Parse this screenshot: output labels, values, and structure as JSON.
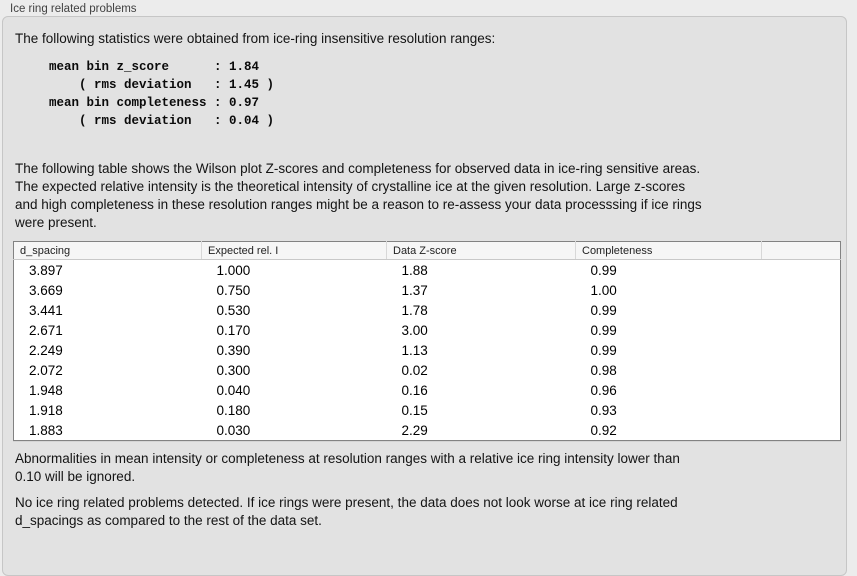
{
  "panel": {
    "title": "Ice ring related problems"
  },
  "intro_text": "The following statistics were obtained from ice-ring insensitive resolution ranges:",
  "stats_block": "mean bin z_score      : 1.84\n    ( rms deviation   : 1.45 )\nmean bin completeness : 0.97\n    ( rms deviation   : 0.04 )",
  "stats": {
    "mean_bin_z_score": "1.84",
    "z_score_rms_deviation": "1.45",
    "mean_bin_completeness": "0.97",
    "completeness_rms_deviation": "0.04"
  },
  "table_intro": "The following table shows the Wilson plot Z-scores and completeness for observed data in ice-ring sensitive areas.\nThe expected relative intensity is the theoretical intensity of crystalline ice at the given resolution. Large z-scores\nand high completeness in these resolution ranges might be a reason to re-assess your data processsing if ice rings\nwere present.",
  "table": {
    "headers": [
      "d_spacing",
      "Expected rel. I",
      "Data Z-score",
      "Completeness",
      ""
    ],
    "rows": [
      [
        "3.897",
        "1.000",
        "1.88",
        "0.99",
        ""
      ],
      [
        "3.669",
        "0.750",
        "1.37",
        "1.00",
        ""
      ],
      [
        "3.441",
        "0.530",
        "1.78",
        "0.99",
        ""
      ],
      [
        "2.671",
        "0.170",
        "3.00",
        "0.99",
        ""
      ],
      [
        "2.249",
        "0.390",
        "1.13",
        "0.99",
        ""
      ],
      [
        "2.072",
        "0.300",
        "0.02",
        "0.98",
        ""
      ],
      [
        "1.948",
        "0.040",
        "0.16",
        "0.96",
        ""
      ],
      [
        "1.918",
        "0.180",
        "0.15",
        "0.93",
        ""
      ],
      [
        "1.883",
        "0.030",
        "2.29",
        "0.92",
        ""
      ]
    ]
  },
  "ignore_note": "Abnormalities in mean intensity or completeness at resolution ranges with a relative ice ring intensity lower than\n0.10 will be ignored.",
  "conclusion": "No ice ring related problems detected. If ice rings were present, the data does not look worse at ice ring related\nd_spacings as compared to the rest of the data set.",
  "colors": {
    "page_background": "#ececec",
    "groupbox_background": "#e2e2e2",
    "groupbox_border": "#c6c6c6",
    "table_background": "#ffffff",
    "table_border": "#828282",
    "header_background": "#f6f6f6"
  }
}
